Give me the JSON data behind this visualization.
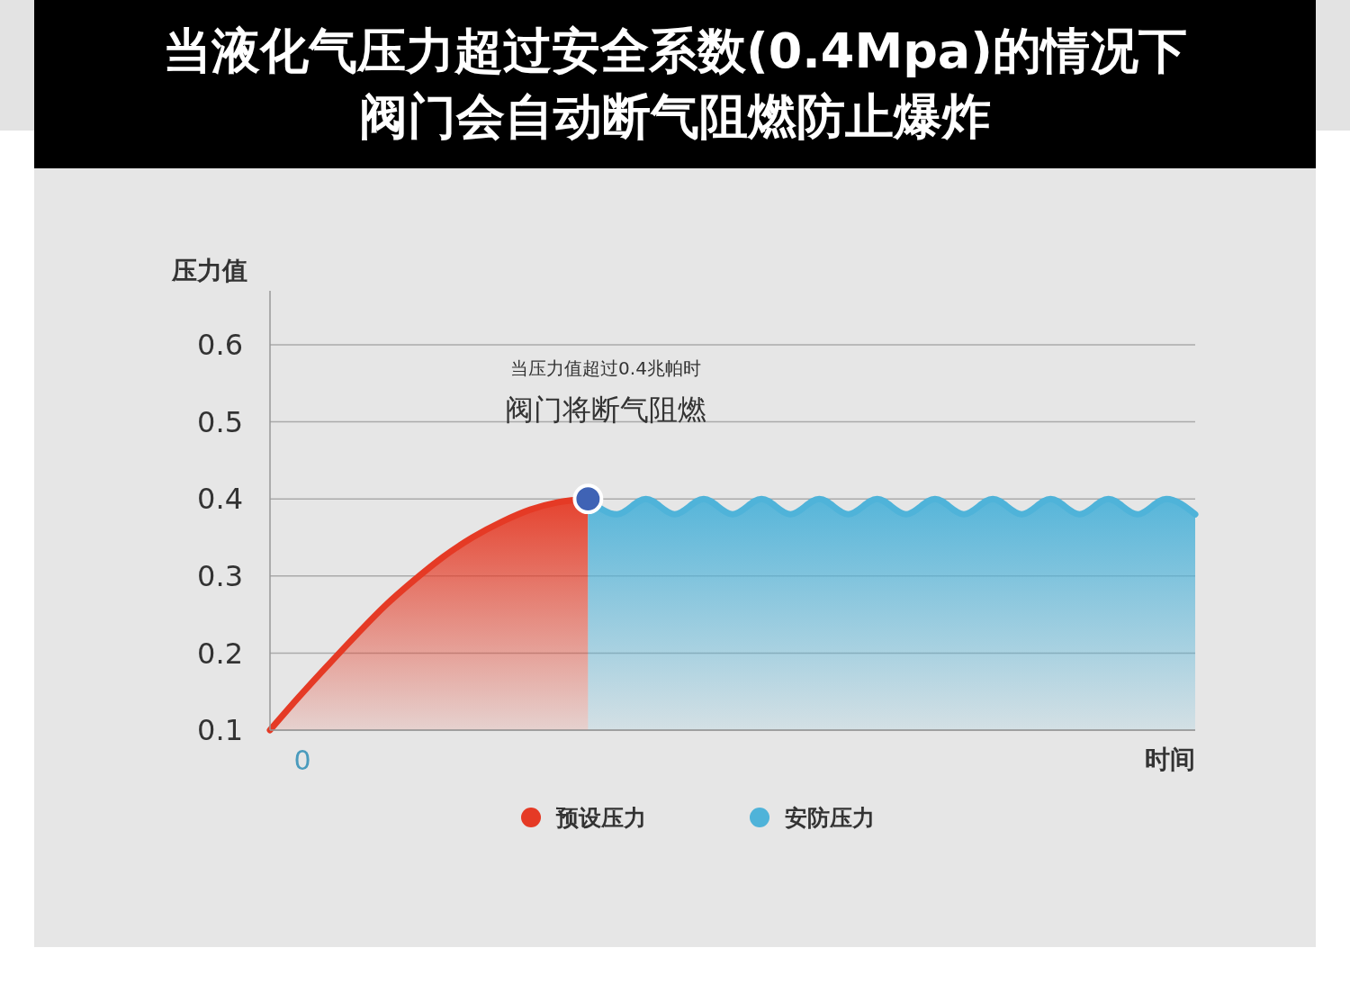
{
  "chart_data": {
    "type": "area",
    "title": "当液化气压力超过安全系数(0.4Mpa)的情况下",
    "subtitle": "阀门会自动断气阻燃防止爆炸",
    "ylabel": "压力值",
    "xlabel": "时间",
    "categories": [
      null,
      null,
      null,
      null,
      null,
      null,
      null,
      null,
      null,
      null,
      null,
      null,
      null,
      null,
      null,
      null,
      null,
      null,
      null,
      null,
      null,
      null,
      null,
      null,
      null,
      null,
      null,
      null,
      null,
      null,
      null,
      null,
      null
    ],
    "ylim": [
      0.1,
      0.67
    ],
    "yticks": [
      {
        "value": 0.1,
        "label": "0.1"
      },
      {
        "value": 0.2,
        "label": "0.2"
      },
      {
        "value": 0.3,
        "label": "0.3"
      },
      {
        "value": 0.4,
        "label": "0.4"
      },
      {
        "value": 0.5,
        "label": "0.5"
      },
      {
        "value": 0.6,
        "label": "0.6"
      }
    ],
    "grid": "y",
    "legend": "bottom",
    "annotations": [
      "当压力值超过0.4兆帕时",
      "阀门将断气阻燃",
      "0"
    ],
    "series": [
      {
        "name": "预设压力",
        "color": "#e53a25",
        "values": [
          0.1,
          0.143,
          0.184,
          0.224,
          0.262,
          0.295,
          0.325,
          0.35,
          0.37,
          0.386,
          0.396,
          0.4,
          null,
          null,
          null,
          null,
          null,
          null,
          null,
          null,
          null,
          null,
          null,
          null,
          null,
          null,
          null,
          null,
          null,
          null,
          null,
          null,
          null
        ]
      },
      {
        "name": "安防压力",
        "color": "#4fb3d9",
        "values": [
          null,
          null,
          null,
          null,
          null,
          null,
          null,
          null,
          null,
          null,
          null,
          0.4,
          0.38,
          0.4,
          0.38,
          0.4,
          0.38,
          0.4,
          0.38,
          0.4,
          0.38,
          0.4,
          0.38,
          0.4,
          0.38,
          0.4,
          0.38,
          0.4,
          0.38,
          0.4,
          0.38,
          0.4,
          0.38
        ]
      },
      {
        "type": "scatter",
        "color": "#3f63b5",
        "marker": "circle",
        "values": [
          null,
          null,
          null,
          null,
          null,
          null,
          null,
          null,
          null,
          null,
          null,
          0.4,
          null,
          null,
          null,
          null,
          null,
          null,
          null,
          null,
          null,
          null,
          null,
          null,
          null,
          null,
          null,
          null,
          null,
          null,
          null,
          null,
          null
        ]
      }
    ]
  }
}
